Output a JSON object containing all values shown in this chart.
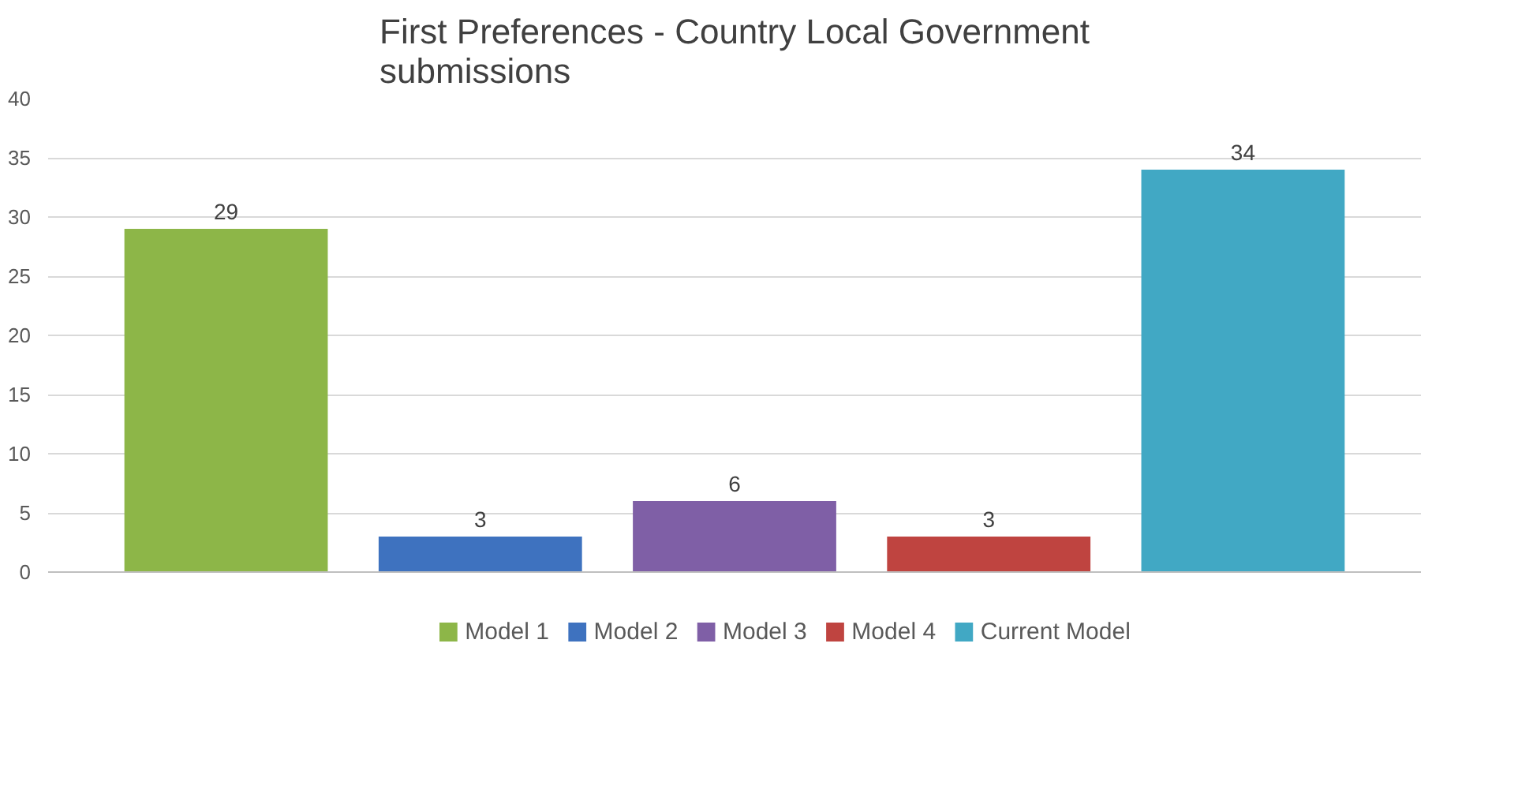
{
  "chart_data": {
    "type": "bar",
    "title": "First Preferences - Country Local Government\nsubmissions",
    "categories": [
      null
    ],
    "series": [
      {
        "name": "Model 1",
        "color": "#8db648",
        "values": [
          29
        ]
      },
      {
        "name": "Model 2",
        "color": "#3e72bf",
        "values": [
          3
        ]
      },
      {
        "name": "Model 3",
        "color": "#7f5fa6",
        "values": [
          6
        ]
      },
      {
        "name": "Model 4",
        "color": "#bf4440",
        "values": [
          3
        ]
      },
      {
        "name": "Current Model",
        "color": "#41a8c4",
        "values": [
          34
        ]
      }
    ],
    "ylim": [
      0,
      40
    ],
    "yticks": [
      0,
      5,
      10,
      15,
      20,
      25,
      30,
      35,
      40
    ],
    "grid": "y",
    "legend": "bottom",
    "data_labels": true,
    "tick_labels": "y"
  }
}
